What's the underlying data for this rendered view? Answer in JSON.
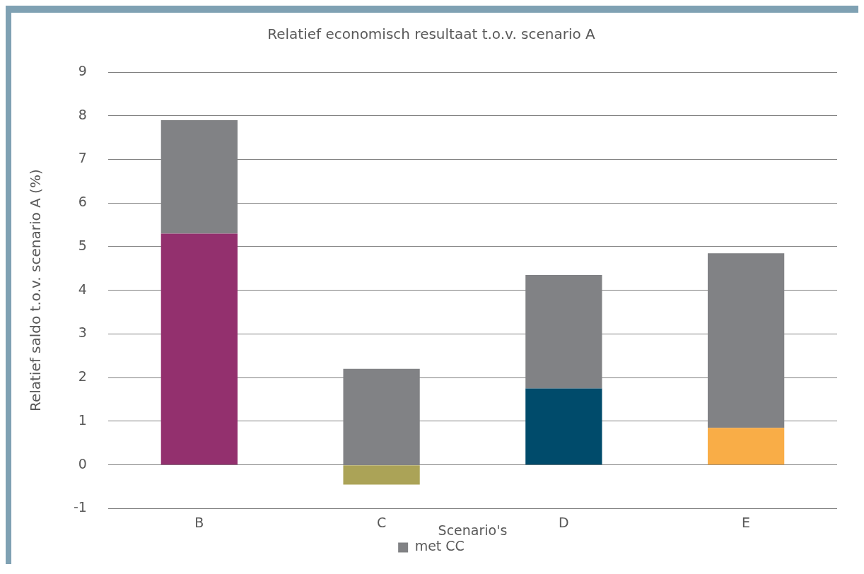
{
  "chart_data": {
    "type": "bar",
    "title": "Relatief economisch resultaat t.o.v. scenario A",
    "xlabel": "Scenario's",
    "ylabel": "Relatief saldo t.o.v. scenario A (%)",
    "categories": [
      "B",
      "C",
      "D",
      "E"
    ],
    "stacked": true,
    "series": [
      {
        "colors": [
          "#93306e",
          "#aba357",
          "#004b6b",
          "#f9ad47"
        ],
        "values": [
          5.3,
          -0.45,
          1.75,
          0.85
        ]
      },
      {
        "name": "met CC",
        "color": "#818285",
        "values": [
          2.6,
          2.2,
          2.6,
          4.0
        ]
      }
    ],
    "ylim": [
      -1,
      9
    ],
    "yticks": [
      -1,
      0,
      1,
      2,
      3,
      4,
      5,
      6,
      7,
      8,
      9
    ],
    "grid": "y",
    "legend": "bottom"
  }
}
